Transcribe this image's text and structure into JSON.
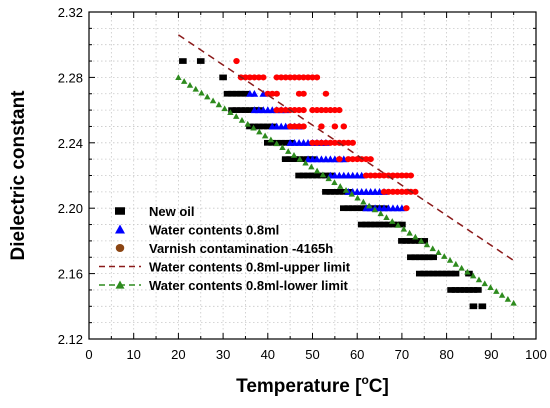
{
  "chart_data": {
    "type": "scatter",
    "xlabel": "Temperature [",
    "xlabel_sup": "o",
    "xlabel_tail": "C]",
    "ylabel": "Dielectric constant",
    "xlim": [
      0,
      100
    ],
    "ylim": [
      2.12,
      2.32
    ],
    "x_ticks": [
      0,
      10,
      20,
      30,
      40,
      50,
      60,
      70,
      80,
      90,
      100
    ],
    "y_ticks": [
      2.12,
      2.16,
      2.2,
      2.24,
      2.28,
      2.32
    ],
    "x_tick_labels": [
      "0",
      "10",
      "20",
      "30",
      "40",
      "50",
      "60",
      "70",
      "80",
      "90",
      "100"
    ],
    "y_tick_labels": [
      "2.12",
      "2.16",
      "2.20",
      "2.24",
      "2.28",
      "2.32"
    ],
    "grid": true,
    "legend_position": "bottom-left",
    "series": [
      {
        "name": "New oil",
        "marker": "square",
        "color": "#000000",
        "points": [
          [
            21,
            2.29
          ],
          [
            25,
            2.29
          ],
          [
            30,
            2.28
          ],
          [
            31,
            2.27
          ],
          [
            32,
            2.27
          ],
          [
            33,
            2.27
          ],
          [
            34,
            2.27
          ],
          [
            35,
            2.27
          ],
          [
            32,
            2.26
          ],
          [
            33,
            2.26
          ],
          [
            34,
            2.26
          ],
          [
            35,
            2.26
          ],
          [
            36,
            2.26
          ],
          [
            37,
            2.26
          ],
          [
            38,
            2.26
          ],
          [
            36,
            2.25
          ],
          [
            37,
            2.25
          ],
          [
            38,
            2.25
          ],
          [
            39,
            2.25
          ],
          [
            40,
            2.25
          ],
          [
            41,
            2.25
          ],
          [
            40,
            2.24
          ],
          [
            41,
            2.24
          ],
          [
            42,
            2.24
          ],
          [
            43,
            2.24
          ],
          [
            44,
            2.24
          ],
          [
            45,
            2.24
          ],
          [
            44,
            2.23
          ],
          [
            45,
            2.23
          ],
          [
            46,
            2.23
          ],
          [
            47,
            2.23
          ],
          [
            48,
            2.23
          ],
          [
            49,
            2.23
          ],
          [
            50,
            2.23
          ],
          [
            47,
            2.22
          ],
          [
            48,
            2.22
          ],
          [
            49,
            2.22
          ],
          [
            50,
            2.22
          ],
          [
            51,
            2.22
          ],
          [
            52,
            2.22
          ],
          [
            53,
            2.22
          ],
          [
            54,
            2.22
          ],
          [
            53,
            2.21
          ],
          [
            54,
            2.21
          ],
          [
            55,
            2.21
          ],
          [
            56,
            2.21
          ],
          [
            57,
            2.21
          ],
          [
            58,
            2.21
          ],
          [
            57,
            2.2
          ],
          [
            58,
            2.2
          ],
          [
            59,
            2.2
          ],
          [
            60,
            2.2
          ],
          [
            61,
            2.2
          ],
          [
            62,
            2.2
          ],
          [
            63,
            2.2
          ],
          [
            64,
            2.2
          ],
          [
            65,
            2.2
          ],
          [
            66,
            2.2
          ],
          [
            61,
            2.19
          ],
          [
            62,
            2.19
          ],
          [
            63,
            2.19
          ],
          [
            64,
            2.19
          ],
          [
            65,
            2.19
          ],
          [
            66,
            2.19
          ],
          [
            67,
            2.19
          ],
          [
            68,
            2.19
          ],
          [
            69,
            2.19
          ],
          [
            70,
            2.19
          ],
          [
            70,
            2.18
          ],
          [
            71,
            2.18
          ],
          [
            72,
            2.18
          ],
          [
            73,
            2.18
          ],
          [
            74,
            2.18
          ],
          [
            75,
            2.18
          ],
          [
            72,
            2.17
          ],
          [
            73,
            2.17
          ],
          [
            74,
            2.17
          ],
          [
            75,
            2.17
          ],
          [
            76,
            2.17
          ],
          [
            77,
            2.17
          ],
          [
            74,
            2.16
          ],
          [
            75,
            2.16
          ],
          [
            76,
            2.16
          ],
          [
            77,
            2.16
          ],
          [
            78,
            2.16
          ],
          [
            79,
            2.16
          ],
          [
            80,
            2.16
          ],
          [
            81,
            2.16
          ],
          [
            82,
            2.16
          ],
          [
            85,
            2.16
          ],
          [
            81,
            2.15
          ],
          [
            82,
            2.15
          ],
          [
            83,
            2.15
          ],
          [
            84,
            2.15
          ],
          [
            85,
            2.15
          ],
          [
            86,
            2.15
          ],
          [
            87,
            2.15
          ],
          [
            86,
            2.14
          ],
          [
            88,
            2.14
          ]
        ]
      },
      {
        "name": "Water contents 0.8ml",
        "marker": "triangle",
        "color": "#0000ff",
        "points": [
          [
            36,
            2.27
          ],
          [
            37,
            2.27
          ],
          [
            39,
            2.27
          ],
          [
            37,
            2.26
          ],
          [
            38,
            2.26
          ],
          [
            39,
            2.26
          ],
          [
            40,
            2.26
          ],
          [
            41,
            2.26
          ],
          [
            42,
            2.26
          ],
          [
            43,
            2.26
          ],
          [
            44,
            2.26
          ],
          [
            41,
            2.25
          ],
          [
            42,
            2.25
          ],
          [
            43,
            2.25
          ],
          [
            44,
            2.25
          ],
          [
            45,
            2.25
          ],
          [
            46,
            2.25
          ],
          [
            47,
            2.25
          ],
          [
            45,
            2.24
          ],
          [
            46,
            2.24
          ],
          [
            47,
            2.24
          ],
          [
            48,
            2.24
          ],
          [
            49,
            2.24
          ],
          [
            50,
            2.24
          ],
          [
            51,
            2.24
          ],
          [
            52,
            2.24
          ],
          [
            53,
            2.24
          ],
          [
            49,
            2.23
          ],
          [
            50,
            2.23
          ],
          [
            51,
            2.23
          ],
          [
            52,
            2.23
          ],
          [
            53,
            2.23
          ],
          [
            54,
            2.23
          ],
          [
            55,
            2.23
          ],
          [
            56,
            2.23
          ],
          [
            57,
            2.23
          ],
          [
            54,
            2.22
          ],
          [
            55,
            2.22
          ],
          [
            56,
            2.22
          ],
          [
            57,
            2.22
          ],
          [
            58,
            2.22
          ],
          [
            59,
            2.22
          ],
          [
            60,
            2.22
          ],
          [
            61,
            2.22
          ],
          [
            58,
            2.21
          ],
          [
            59,
            2.21
          ],
          [
            60,
            2.21
          ],
          [
            61,
            2.21
          ],
          [
            62,
            2.21
          ],
          [
            63,
            2.21
          ],
          [
            64,
            2.21
          ],
          [
            65,
            2.21
          ],
          [
            66,
            2.21
          ],
          [
            62,
            2.2
          ],
          [
            63,
            2.2
          ],
          [
            64,
            2.2
          ],
          [
            65,
            2.2
          ],
          [
            66,
            2.2
          ],
          [
            67,
            2.2
          ],
          [
            68,
            2.2
          ],
          [
            69,
            2.2
          ],
          [
            70,
            2.2
          ]
        ]
      },
      {
        "name": "Varnish contamination -4165h",
        "marker": "circle",
        "color": "#ff0000",
        "points": [
          [
            33,
            2.29
          ],
          [
            34,
            2.28
          ],
          [
            35,
            2.28
          ],
          [
            36,
            2.28
          ],
          [
            37,
            2.28
          ],
          [
            38,
            2.28
          ],
          [
            39,
            2.28
          ],
          [
            42,
            2.28
          ],
          [
            43,
            2.28
          ],
          [
            44,
            2.28
          ],
          [
            45,
            2.28
          ],
          [
            46,
            2.28
          ],
          [
            47,
            2.28
          ],
          [
            48,
            2.28
          ],
          [
            49,
            2.28
          ],
          [
            50,
            2.28
          ],
          [
            51,
            2.28
          ],
          [
            40,
            2.27
          ],
          [
            41,
            2.27
          ],
          [
            42,
            2.27
          ],
          [
            47,
            2.27
          ],
          [
            48,
            2.27
          ],
          [
            53,
            2.27
          ],
          [
            42,
            2.26
          ],
          [
            43,
            2.26
          ],
          [
            44,
            2.26
          ],
          [
            45,
            2.26
          ],
          [
            46,
            2.26
          ],
          [
            47,
            2.26
          ],
          [
            48,
            2.26
          ],
          [
            50,
            2.26
          ],
          [
            51,
            2.26
          ],
          [
            52,
            2.26
          ],
          [
            53,
            2.26
          ],
          [
            54,
            2.26
          ],
          [
            55,
            2.26
          ],
          [
            56,
            2.26
          ],
          [
            45,
            2.25
          ],
          [
            46,
            2.25
          ],
          [
            47,
            2.25
          ],
          [
            48,
            2.25
          ],
          [
            52,
            2.25
          ],
          [
            55,
            2.25
          ],
          [
            57,
            2.25
          ],
          [
            50,
            2.24
          ],
          [
            51,
            2.24
          ],
          [
            52,
            2.24
          ],
          [
            53,
            2.24
          ],
          [
            54,
            2.24
          ],
          [
            55,
            2.24
          ],
          [
            56,
            2.24
          ],
          [
            57,
            2.24
          ],
          [
            58,
            2.24
          ],
          [
            59,
            2.24
          ],
          [
            56,
            2.23
          ],
          [
            58,
            2.23
          ],
          [
            59,
            2.23
          ],
          [
            60,
            2.23
          ],
          [
            61,
            2.23
          ],
          [
            62,
            2.23
          ],
          [
            63,
            2.23
          ],
          [
            62,
            2.22
          ],
          [
            63,
            2.22
          ],
          [
            64,
            2.22
          ],
          [
            65,
            2.22
          ],
          [
            66,
            2.22
          ],
          [
            67,
            2.22
          ],
          [
            68,
            2.22
          ],
          [
            69,
            2.22
          ],
          [
            70,
            2.22
          ],
          [
            71,
            2.22
          ],
          [
            72,
            2.22
          ],
          [
            66,
            2.21
          ],
          [
            67,
            2.21
          ],
          [
            68,
            2.21
          ],
          [
            69,
            2.21
          ],
          [
            70,
            2.21
          ],
          [
            71,
            2.21
          ],
          [
            72,
            2.21
          ],
          [
            73,
            2.21
          ],
          [
            71,
            2.2
          ]
        ]
      },
      {
        "name": "Water contents 0.8ml-upper limit",
        "marker": "dashed-line",
        "color": "#8b1a1a",
        "line": [
          [
            20,
            2.306
          ],
          [
            95,
            2.168
          ]
        ]
      },
      {
        "name": "Water contents 0.8ml-lower limit",
        "marker": "triangle-line",
        "color": "#2e8b1e",
        "line": [
          [
            20,
            2.28
          ],
          [
            95,
            2.142
          ]
        ]
      }
    ]
  }
}
